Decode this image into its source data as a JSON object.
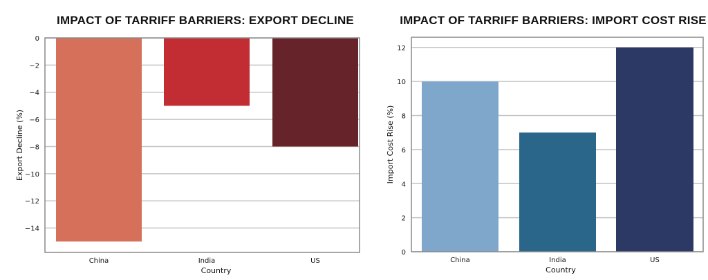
{
  "chart_data": [
    {
      "type": "bar",
      "title": "IMPACT OF TARRIFF BARRIERS: EXPORT DECLINE",
      "xlabel": "Country",
      "ylabel": "Export Decline (%)",
      "categories": [
        "China",
        "India",
        "US"
      ],
      "values": [
        -15,
        -5,
        -8
      ],
      "colors": [
        "#d6705a",
        "#c22c33",
        "#66232a"
      ],
      "ylim": [
        -15.8,
        0
      ],
      "yticks": [
        0,
        -2,
        -4,
        -6,
        -8,
        -10,
        -12,
        -14
      ],
      "ytick_labels": [
        "0",
        "−2",
        "−4",
        "−6",
        "−8",
        "−10",
        "−12",
        "−14"
      ],
      "grid": true
    },
    {
      "type": "bar",
      "title": "IMPACT OF TARRIFF BARRIERS: IMPORT COST RISE",
      "xlabel": "Country",
      "ylabel": "Import Cost Rise (%)",
      "categories": [
        "China",
        "India",
        "US"
      ],
      "values": [
        10,
        7,
        12
      ],
      "colors": [
        "#7fa7cb",
        "#2a6689",
        "#2c3964"
      ],
      "ylim": [
        0,
        12.6
      ],
      "yticks": [
        0,
        2,
        4,
        6,
        8,
        10,
        12
      ],
      "ytick_labels": [
        "0",
        "2",
        "4",
        "6",
        "8",
        "10",
        "12"
      ],
      "grid": true
    }
  ]
}
